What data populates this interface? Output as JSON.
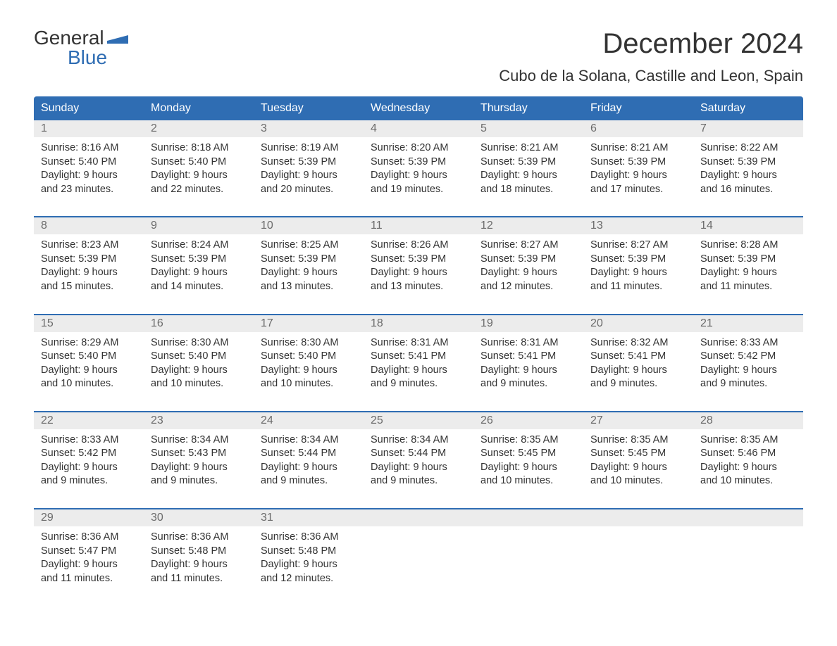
{
  "logo": {
    "word1": "General",
    "word2": "Blue"
  },
  "title": "December 2024",
  "location": "Cubo de la Solana, Castille and Leon, Spain",
  "colors": {
    "header_bg": "#2f6db3",
    "header_text": "#ffffff",
    "daynum_bg": "#ececec",
    "daynum_text": "#6b6b6b",
    "body_text": "#333333",
    "week_border": "#2f6db3",
    "page_bg": "#ffffff"
  },
  "typography": {
    "title_fontsize": 40,
    "location_fontsize": 22,
    "dayheader_fontsize": 16,
    "cell_fontsize": 14.5
  },
  "calendar": {
    "columns": 7,
    "day_labels": [
      "Sunday",
      "Monday",
      "Tuesday",
      "Wednesday",
      "Thursday",
      "Friday",
      "Saturday"
    ],
    "weeks": [
      {
        "days": [
          {
            "num": "1",
            "sunrise": "Sunrise: 8:16 AM",
            "sunset": "Sunset: 5:40 PM",
            "daylight1": "Daylight: 9 hours",
            "daylight2": "and 23 minutes."
          },
          {
            "num": "2",
            "sunrise": "Sunrise: 8:18 AM",
            "sunset": "Sunset: 5:40 PM",
            "daylight1": "Daylight: 9 hours",
            "daylight2": "and 22 minutes."
          },
          {
            "num": "3",
            "sunrise": "Sunrise: 8:19 AM",
            "sunset": "Sunset: 5:39 PM",
            "daylight1": "Daylight: 9 hours",
            "daylight2": "and 20 minutes."
          },
          {
            "num": "4",
            "sunrise": "Sunrise: 8:20 AM",
            "sunset": "Sunset: 5:39 PM",
            "daylight1": "Daylight: 9 hours",
            "daylight2": "and 19 minutes."
          },
          {
            "num": "5",
            "sunrise": "Sunrise: 8:21 AM",
            "sunset": "Sunset: 5:39 PM",
            "daylight1": "Daylight: 9 hours",
            "daylight2": "and 18 minutes."
          },
          {
            "num": "6",
            "sunrise": "Sunrise: 8:21 AM",
            "sunset": "Sunset: 5:39 PM",
            "daylight1": "Daylight: 9 hours",
            "daylight2": "and 17 minutes."
          },
          {
            "num": "7",
            "sunrise": "Sunrise: 8:22 AM",
            "sunset": "Sunset: 5:39 PM",
            "daylight1": "Daylight: 9 hours",
            "daylight2": "and 16 minutes."
          }
        ]
      },
      {
        "days": [
          {
            "num": "8",
            "sunrise": "Sunrise: 8:23 AM",
            "sunset": "Sunset: 5:39 PM",
            "daylight1": "Daylight: 9 hours",
            "daylight2": "and 15 minutes."
          },
          {
            "num": "9",
            "sunrise": "Sunrise: 8:24 AM",
            "sunset": "Sunset: 5:39 PM",
            "daylight1": "Daylight: 9 hours",
            "daylight2": "and 14 minutes."
          },
          {
            "num": "10",
            "sunrise": "Sunrise: 8:25 AM",
            "sunset": "Sunset: 5:39 PM",
            "daylight1": "Daylight: 9 hours",
            "daylight2": "and 13 minutes."
          },
          {
            "num": "11",
            "sunrise": "Sunrise: 8:26 AM",
            "sunset": "Sunset: 5:39 PM",
            "daylight1": "Daylight: 9 hours",
            "daylight2": "and 13 minutes."
          },
          {
            "num": "12",
            "sunrise": "Sunrise: 8:27 AM",
            "sunset": "Sunset: 5:39 PM",
            "daylight1": "Daylight: 9 hours",
            "daylight2": "and 12 minutes."
          },
          {
            "num": "13",
            "sunrise": "Sunrise: 8:27 AM",
            "sunset": "Sunset: 5:39 PM",
            "daylight1": "Daylight: 9 hours",
            "daylight2": "and 11 minutes."
          },
          {
            "num": "14",
            "sunrise": "Sunrise: 8:28 AM",
            "sunset": "Sunset: 5:39 PM",
            "daylight1": "Daylight: 9 hours",
            "daylight2": "and 11 minutes."
          }
        ]
      },
      {
        "days": [
          {
            "num": "15",
            "sunrise": "Sunrise: 8:29 AM",
            "sunset": "Sunset: 5:40 PM",
            "daylight1": "Daylight: 9 hours",
            "daylight2": "and 10 minutes."
          },
          {
            "num": "16",
            "sunrise": "Sunrise: 8:30 AM",
            "sunset": "Sunset: 5:40 PM",
            "daylight1": "Daylight: 9 hours",
            "daylight2": "and 10 minutes."
          },
          {
            "num": "17",
            "sunrise": "Sunrise: 8:30 AM",
            "sunset": "Sunset: 5:40 PM",
            "daylight1": "Daylight: 9 hours",
            "daylight2": "and 10 minutes."
          },
          {
            "num": "18",
            "sunrise": "Sunrise: 8:31 AM",
            "sunset": "Sunset: 5:41 PM",
            "daylight1": "Daylight: 9 hours",
            "daylight2": "and 9 minutes."
          },
          {
            "num": "19",
            "sunrise": "Sunrise: 8:31 AM",
            "sunset": "Sunset: 5:41 PM",
            "daylight1": "Daylight: 9 hours",
            "daylight2": "and 9 minutes."
          },
          {
            "num": "20",
            "sunrise": "Sunrise: 8:32 AM",
            "sunset": "Sunset: 5:41 PM",
            "daylight1": "Daylight: 9 hours",
            "daylight2": "and 9 minutes."
          },
          {
            "num": "21",
            "sunrise": "Sunrise: 8:33 AM",
            "sunset": "Sunset: 5:42 PM",
            "daylight1": "Daylight: 9 hours",
            "daylight2": "and 9 minutes."
          }
        ]
      },
      {
        "days": [
          {
            "num": "22",
            "sunrise": "Sunrise: 8:33 AM",
            "sunset": "Sunset: 5:42 PM",
            "daylight1": "Daylight: 9 hours",
            "daylight2": "and 9 minutes."
          },
          {
            "num": "23",
            "sunrise": "Sunrise: 8:34 AM",
            "sunset": "Sunset: 5:43 PM",
            "daylight1": "Daylight: 9 hours",
            "daylight2": "and 9 minutes."
          },
          {
            "num": "24",
            "sunrise": "Sunrise: 8:34 AM",
            "sunset": "Sunset: 5:44 PM",
            "daylight1": "Daylight: 9 hours",
            "daylight2": "and 9 minutes."
          },
          {
            "num": "25",
            "sunrise": "Sunrise: 8:34 AM",
            "sunset": "Sunset: 5:44 PM",
            "daylight1": "Daylight: 9 hours",
            "daylight2": "and 9 minutes."
          },
          {
            "num": "26",
            "sunrise": "Sunrise: 8:35 AM",
            "sunset": "Sunset: 5:45 PM",
            "daylight1": "Daylight: 9 hours",
            "daylight2": "and 10 minutes."
          },
          {
            "num": "27",
            "sunrise": "Sunrise: 8:35 AM",
            "sunset": "Sunset: 5:45 PM",
            "daylight1": "Daylight: 9 hours",
            "daylight2": "and 10 minutes."
          },
          {
            "num": "28",
            "sunrise": "Sunrise: 8:35 AM",
            "sunset": "Sunset: 5:46 PM",
            "daylight1": "Daylight: 9 hours",
            "daylight2": "and 10 minutes."
          }
        ]
      },
      {
        "days": [
          {
            "num": "29",
            "sunrise": "Sunrise: 8:36 AM",
            "sunset": "Sunset: 5:47 PM",
            "daylight1": "Daylight: 9 hours",
            "daylight2": "and 11 minutes."
          },
          {
            "num": "30",
            "sunrise": "Sunrise: 8:36 AM",
            "sunset": "Sunset: 5:48 PM",
            "daylight1": "Daylight: 9 hours",
            "daylight2": "and 11 minutes."
          },
          {
            "num": "31",
            "sunrise": "Sunrise: 8:36 AM",
            "sunset": "Sunset: 5:48 PM",
            "daylight1": "Daylight: 9 hours",
            "daylight2": "and 12 minutes."
          },
          {
            "empty": true
          },
          {
            "empty": true
          },
          {
            "empty": true
          },
          {
            "empty": true
          }
        ]
      }
    ]
  }
}
